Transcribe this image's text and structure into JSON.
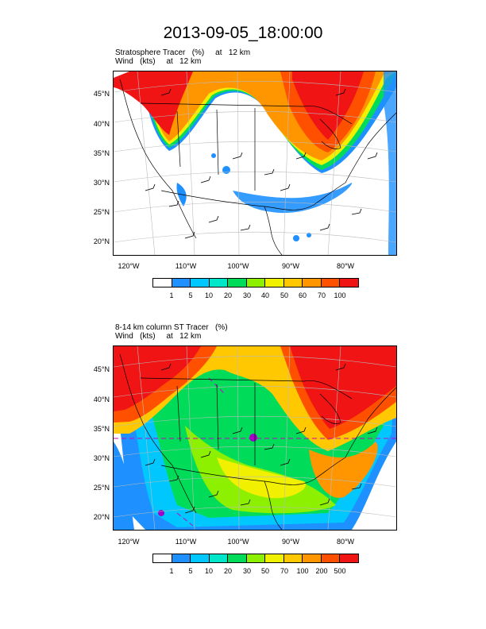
{
  "title": "2013-09-05_18:00:00",
  "panels": [
    {
      "title_line1": "Stratosphere Tracer   (%)     at   12 km",
      "title_line2": "Wind   (kts)     at   12 km",
      "lat_labels": [
        "45°N",
        "40°N",
        "35°N",
        "30°N",
        "25°N",
        "20°N"
      ],
      "lon_labels": [
        "120°W",
        "110°W",
        "100°W",
        "90°W",
        "80°W"
      ],
      "colorbar": {
        "colors": [
          "#ffffff",
          "#1e90ff",
          "#00c8ff",
          "#00e6c8",
          "#00dc5a",
          "#8cf000",
          "#f0f000",
          "#ffc800",
          "#ff9600",
          "#ff5000",
          "#f01414"
        ],
        "labels": [
          "1",
          "5",
          "10",
          "20",
          "30",
          "40",
          "50",
          "60",
          "70",
          "100"
        ]
      }
    },
    {
      "title_line1": "8-14 km column ST Tracer   (%)",
      "title_line2": "Wind   (kts)     at   12 km",
      "lat_labels": [
        "45°N",
        "40°N",
        "35°N",
        "30°N",
        "25°N",
        "20°N"
      ],
      "lon_labels": [
        "120°W",
        "110°W",
        "100°W",
        "90°W",
        "80°W"
      ],
      "colorbar": {
        "colors": [
          "#ffffff",
          "#1e90ff",
          "#00c8ff",
          "#00e6c8",
          "#00dc5a",
          "#8cf000",
          "#f0f000",
          "#ffc800",
          "#ff9600",
          "#ff5000",
          "#f01414"
        ],
        "labels": [
          "1",
          "5",
          "10",
          "20",
          "30",
          "50",
          "70",
          "100",
          "200",
          "500"
        ]
      }
    }
  ]
}
